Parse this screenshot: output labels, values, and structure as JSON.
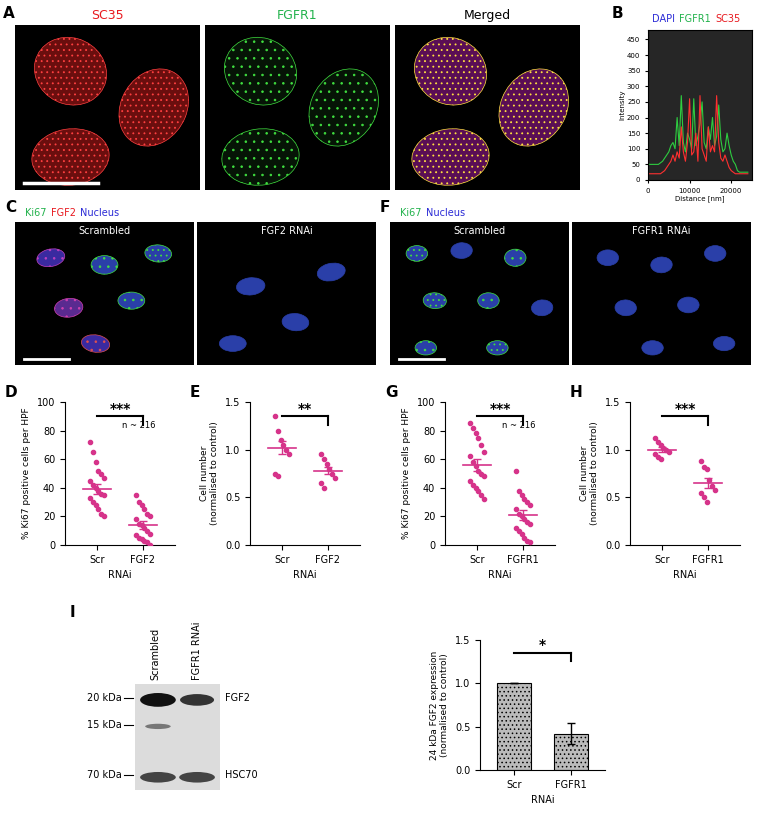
{
  "chart_data": [
    {
      "panel": "A",
      "type": "image",
      "titles": [
        {
          "text": "SC35",
          "color": "#e8191f"
        },
        {
          "text": "FGFR1",
          "color": "#22b24c"
        },
        {
          "text": "Merged",
          "color": "#000000"
        }
      ]
    },
    {
      "panel": "B",
      "type": "line",
      "title_words": [
        {
          "text": "DAPI",
          "color": "#2b2bd6"
        },
        {
          "text": "FGFR1",
          "color": "#22b24c"
        },
        {
          "text": "SC35",
          "color": "#e8191f"
        }
      ],
      "x": [
        0,
        500,
        1000,
        1500,
        2000,
        2500,
        3000,
        3500,
        4000,
        4500,
        5000,
        5500,
        6000,
        6500,
        7000,
        7500,
        8000,
        8500,
        9000,
        9500,
        10000,
        10500,
        11000,
        11500,
        12000,
        12500,
        13000,
        13500,
        14000,
        14500,
        15000,
        15500,
        16000,
        16500,
        17000,
        17500,
        18000,
        18500,
        19000,
        19500,
        20000,
        20500,
        21000,
        21500,
        22000,
        22500,
        23000,
        23500,
        24000
      ],
      "series": [
        {
          "name": "FGFR1",
          "color": "#2ecc40",
          "values": [
            50,
            50,
            50,
            50,
            50,
            50,
            55,
            60,
            70,
            80,
            90,
            110,
            120,
            100,
            200,
            110,
            270,
            120,
            90,
            150,
            130,
            100,
            260,
            110,
            140,
            180,
            250,
            120,
            100,
            170,
            130,
            200,
            110,
            140,
            240,
            130,
            90,
            100,
            150,
            110,
            80,
            60,
            50,
            30,
            25,
            25,
            25,
            25,
            25
          ]
        },
        {
          "name": "SC35",
          "color": "#ff3030",
          "values": [
            20,
            20,
            20,
            20,
            20,
            20,
            20,
            25,
            30,
            40,
            50,
            60,
            80,
            60,
            90,
            70,
            170,
            90,
            60,
            120,
            260,
            80,
            90,
            150,
            60,
            270,
            100,
            80,
            60,
            170,
            90,
            110,
            90,
            270,
            120,
            70,
            60,
            80,
            60,
            40,
            30,
            25,
            20,
            20,
            20,
            20,
            20,
            20,
            20
          ]
        }
      ],
      "x_label": "Distance [nm]",
      "y_label": "Intensity",
      "xlim": [
        0,
        25000
      ],
      "ylim": [
        0,
        480
      ],
      "xticks": [
        0,
        10000,
        20000
      ],
      "yticks": [
        0,
        50,
        100,
        150,
        200,
        250,
        300,
        350,
        400,
        450
      ]
    },
    {
      "panel": "C",
      "type": "image",
      "title_words": [
        {
          "text": "Ki67",
          "color": "#22b24c"
        },
        {
          "text": "FGF2",
          "color": "#e8191f"
        },
        {
          "text": "Nucleus",
          "color": "#2b2bd6"
        }
      ],
      "images": [
        "Scrambled",
        "FGF2 RNAi"
      ]
    },
    {
      "panel": "F",
      "type": "image",
      "title_words": [
        {
          "text": "Ki67",
          "color": "#22b24c"
        },
        {
          "text": "Nucleus",
          "color": "#2b2bd6"
        }
      ],
      "images": [
        "Scrambled",
        "FGFR1 RNAi"
      ]
    },
    {
      "panel": "D",
      "type": "scatter",
      "categories": [
        "Scr",
        "FGF2"
      ],
      "x_label": "RNAi",
      "y_label": "% Ki67 positive cells per HPF",
      "ylim": [
        0,
        100
      ],
      "yticks": [
        0,
        20,
        40,
        60,
        80,
        100
      ],
      "color": "#d6338a",
      "groups": [
        {
          "values": [
            72,
            65,
            58,
            52,
            50,
            47,
            45,
            42,
            40,
            38,
            36,
            35,
            33,
            30,
            28,
            25,
            22,
            20
          ],
          "mean": 39,
          "sem": 3.5
        },
        {
          "values": [
            35,
            30,
            28,
            25,
            22,
            20,
            18,
            15,
            14,
            12,
            10,
            8,
            7,
            5,
            4,
            3,
            2,
            0
          ],
          "mean": 14,
          "sem": 2.5
        }
      ],
      "significance": "***",
      "annotation": "n ~ 216"
    },
    {
      "panel": "E",
      "type": "scatter",
      "categories": [
        "Scr",
        "FGF2"
      ],
      "x_label": "RNAi",
      "y_label": "Cell number\n(normalised to control)",
      "ylim": [
        0,
        1.5
      ],
      "yticks": [
        {
          "value": 0,
          "label": "0.0"
        },
        {
          "value": 0.5,
          "label": "0.5"
        },
        {
          "value": 1.0,
          "label": "1.0"
        },
        {
          "value": 1.5,
          "label": "1.5"
        }
      ],
      "color": "#d6338a",
      "groups": [
        {
          "values": [
            1.35,
            1.2,
            1.1,
            1.05,
            1.0,
            0.95,
            0.75,
            0.72
          ],
          "mean": 1.02,
          "sem": 0.07
        },
        {
          "values": [
            0.95,
            0.9,
            0.85,
            0.8,
            0.75,
            0.7,
            0.65,
            0.6
          ],
          "mean": 0.78,
          "sem": 0.04
        }
      ],
      "significance": "**"
    },
    {
      "panel": "G",
      "type": "scatter",
      "categories": [
        "Scr",
        "FGFR1"
      ],
      "x_label": "RNAi",
      "y_label": "% Ki67 positive cells per HPF",
      "ylim": [
        0,
        100
      ],
      "yticks": [
        0,
        20,
        40,
        60,
        80,
        100
      ],
      "color": "#d6338a",
      "groups": [
        {
          "values": [
            85,
            82,
            78,
            75,
            70,
            65,
            62,
            58,
            55,
            52,
            50,
            48,
            45,
            42,
            40,
            38,
            35,
            32
          ],
          "mean": 56,
          "sem": 4
        },
        {
          "values": [
            52,
            38,
            35,
            32,
            30,
            28,
            25,
            22,
            20,
            18,
            16,
            15,
            12,
            10,
            8,
            5,
            3,
            2
          ],
          "mean": 21,
          "sem": 3.5
        }
      ],
      "significance": "***",
      "annotation": "n ~ 216"
    },
    {
      "panel": "H",
      "type": "scatter",
      "categories": [
        "Scr",
        "FGFR1"
      ],
      "x_label": "RNAi",
      "y_label": "Cell number\n(normalised to control)",
      "ylim": [
        0,
        1.5
      ],
      "yticks": [
        {
          "value": 0,
          "label": "0.0"
        },
        {
          "value": 0.5,
          "label": "0.5"
        },
        {
          "value": 1.0,
          "label": "1.0"
        },
        {
          "value": 1.5,
          "label": "1.5"
        }
      ],
      "color": "#d6338a",
      "groups": [
        {
          "values": [
            1.12,
            1.08,
            1.05,
            1.02,
            1.0,
            0.98,
            0.95,
            0.92,
            0.9
          ],
          "mean": 1.0,
          "sem": 0.025
        },
        {
          "values": [
            0.88,
            0.82,
            0.8,
            0.68,
            0.62,
            0.58,
            0.55,
            0.5,
            0.45
          ],
          "mean": 0.65,
          "sem": 0.05
        }
      ],
      "significance": "***"
    },
    {
      "panel": "I",
      "type": "image",
      "lanes": [
        "Scrambled",
        "FGFR1 RNAi"
      ],
      "markers": [
        "20 kDa",
        "15 kDa",
        "70 kDa"
      ],
      "bands": [
        "FGF2",
        "HSC70"
      ]
    },
    {
      "type": "bar",
      "categories": [
        "Scr",
        "FGFR1"
      ],
      "values": [
        1.0,
        0.42
      ],
      "errors": [
        0,
        0.12
      ],
      "x_label": "RNAi",
      "y_label": "24 kDa FGF2 expression\n(normalised to control)",
      "ylim": [
        0,
        1.5
      ],
      "yticks": [
        {
          "value": 0,
          "label": "0.0"
        },
        {
          "value": 0.5,
          "label": "0.5"
        },
        {
          "value": 1.0,
          "label": "1.0"
        },
        {
          "value": 1.5,
          "label": "1.5"
        }
      ],
      "color": "#bbbbbb",
      "significance": "*"
    }
  ]
}
